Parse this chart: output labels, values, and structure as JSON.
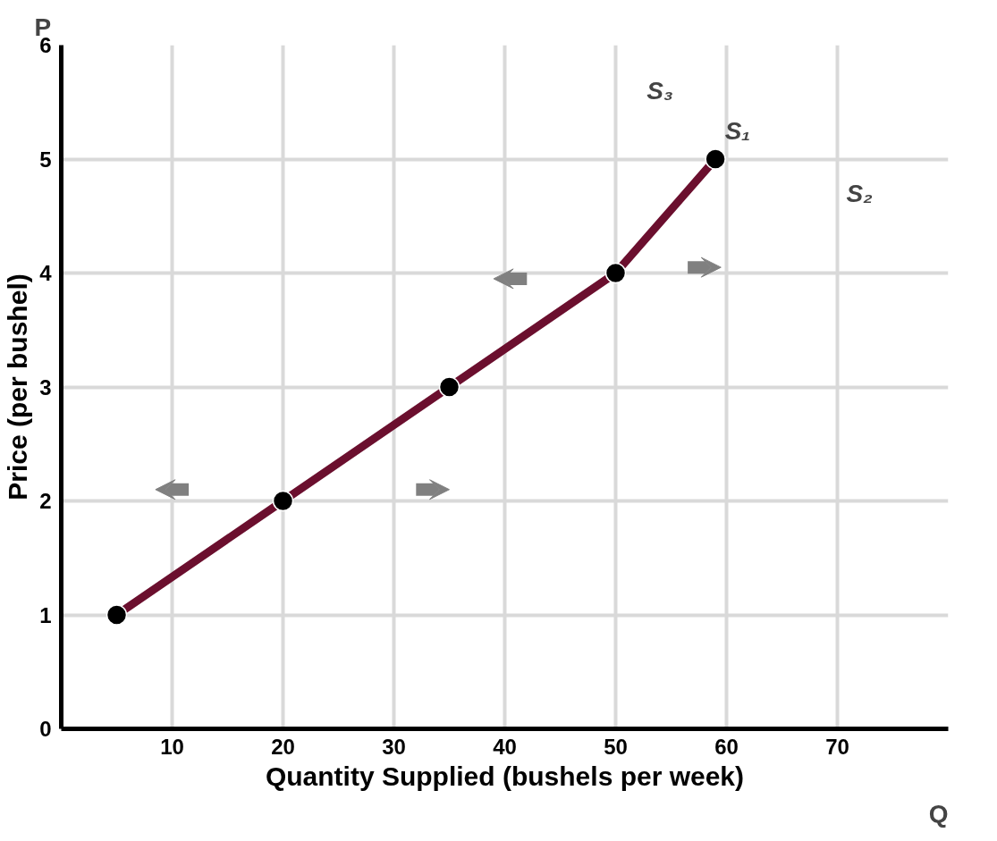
{
  "chart_data": {
    "type": "line",
    "xlabel": "Quantity Supplied (bushels per week)",
    "ylabel": "Price (per bushel)",
    "x": [
      5,
      20,
      35,
      50,
      59
    ],
    "series": [
      {
        "color": "#6b0f2e",
        "values": [
          1,
          2,
          3,
          4,
          5
        ],
        "marker": "none"
      },
      {
        "type": "scatter",
        "color": "#000000",
        "values": [
          1,
          2,
          3,
          4,
          5
        ],
        "marker": "circle"
      }
    ],
    "xlim": [
      0,
      80
    ],
    "ylim": [
      0,
      6
    ],
    "xticks": [
      10,
      20,
      30,
      40,
      50,
      60,
      70
    ],
    "yticks": [
      0,
      1,
      2,
      3,
      4,
      5,
      6
    ],
    "grid": true,
    "annotations": [
      "S₃",
      "S₁",
      "S₂",
      "P",
      "Q"
    ]
  }
}
